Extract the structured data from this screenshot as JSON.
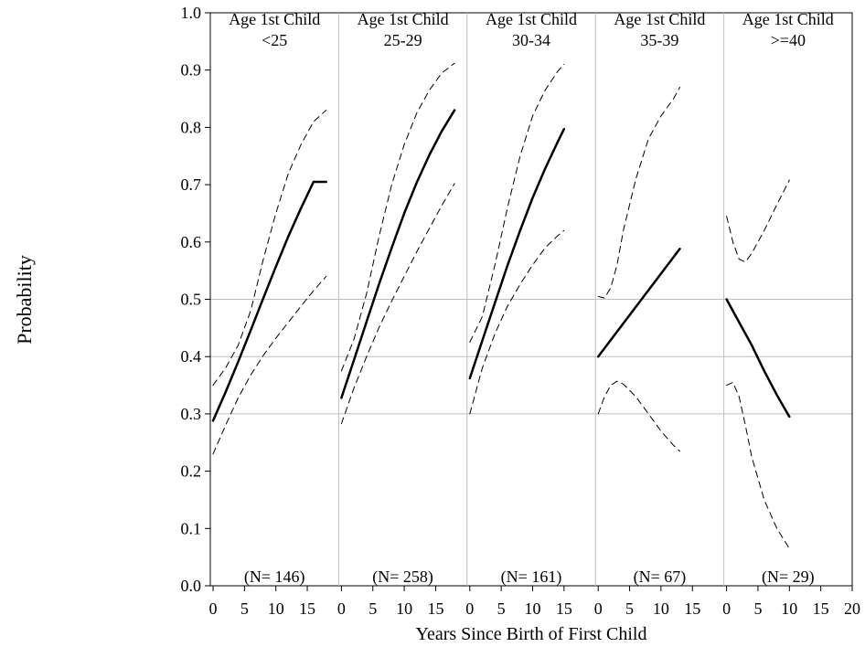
{
  "chart_data": {
    "type": "line",
    "ylabel": "Probability",
    "xlabel": "Years Since Birth of First Child",
    "ylim": [
      0.0,
      1.0
    ],
    "yticks": [
      "0.0",
      "0.1",
      "0.2",
      "0.3",
      "0.4",
      "0.5",
      "0.6",
      "0.7",
      "0.8",
      "0.9",
      "1.0"
    ],
    "xlim": [
      0,
      20
    ],
    "xticks": [
      "0",
      "5",
      "10",
      "15"
    ],
    "last_xticks": [
      "0",
      "5",
      "10",
      "15",
      "20"
    ],
    "reference_lines": [
      0.3,
      0.4,
      0.5
    ],
    "line_styles": {
      "estimate": "solid",
      "ci_lower": "dashed",
      "ci_upper": "dashed"
    },
    "line_color": "#000000",
    "panels": [
      {
        "title_line1": "Age 1st Child",
        "title_line2": "<25",
        "n_label": "(N= 146)",
        "series": [
          {
            "x": [
              0,
              2,
              4,
              6,
              8,
              10,
              12,
              14,
              16,
              18
            ],
            "values": [
              0.288,
              0.338,
              0.391,
              0.446,
              0.502,
              0.557,
              0.61,
              0.659,
              0.705,
              0.705
            ]
          },
          {
            "x": [
              0,
              2,
              4,
              6,
              8,
              10,
              12,
              14,
              16,
              18
            ],
            "values": [
              0.23,
              0.28,
              0.328,
              0.368,
              0.402,
              0.432,
              0.46,
              0.488,
              0.515,
              0.54
            ]
          },
          {
            "x": [
              0,
              2,
              4,
              6,
              8,
              10,
              12,
              14,
              16,
              18
            ],
            "values": [
              0.35,
              0.38,
              0.42,
              0.48,
              0.57,
              0.65,
              0.72,
              0.77,
              0.81,
              0.83
            ]
          }
        ]
      },
      {
        "title_line1": "Age 1st Child",
        "title_line2": "25-29",
        "n_label": "(N= 258)",
        "series": [
          {
            "x": [
              0,
              2,
              4,
              6,
              8,
              10,
              12,
              14,
              16,
              18
            ],
            "values": [
              0.328,
              0.394,
              0.461,
              0.527,
              0.59,
              0.65,
              0.704,
              0.752,
              0.794,
              0.83
            ]
          },
          {
            "x": [
              0,
              2,
              4,
              6,
              8,
              10,
              12,
              14,
              16,
              18
            ],
            "values": [
              0.283,
              0.345,
              0.4,
              0.451,
              0.497,
              0.54,
              0.583,
              0.624,
              0.664,
              0.702
            ]
          },
          {
            "x": [
              0,
              2,
              4,
              6,
              8,
              10,
              12,
              14,
              16,
              18
            ],
            "values": [
              0.375,
              0.43,
              0.51,
              0.61,
              0.7,
              0.77,
              0.825,
              0.865,
              0.895,
              0.912
            ]
          }
        ]
      },
      {
        "title_line1": "Age 1st Child",
        "title_line2": "30-34",
        "n_label": "(N= 161)",
        "series": [
          {
            "x": [
              0,
              2,
              4,
              6,
              8,
              10,
              12,
              14,
              15
            ],
            "values": [
              0.362,
              0.428,
              0.494,
              0.559,
              0.62,
              0.677,
              0.728,
              0.775,
              0.797
            ]
          },
          {
            "x": [
              0,
              2,
              4,
              6,
              8,
              10,
              12,
              14,
              15
            ],
            "values": [
              0.3,
              0.38,
              0.44,
              0.488,
              0.526,
              0.56,
              0.59,
              0.611,
              0.62
            ]
          },
          {
            "x": [
              0,
              2,
              4,
              6,
              8,
              10,
              12,
              14,
              15
            ],
            "values": [
              0.425,
              0.47,
              0.56,
              0.66,
              0.75,
              0.82,
              0.865,
              0.898,
              0.91
            ]
          }
        ]
      },
      {
        "title_line1": "Age 1st Child",
        "title_line2": "35-39",
        "n_label": "(N=  67)",
        "series": [
          {
            "x": [
              0,
              13
            ],
            "values": [
              0.4,
              0.588
            ]
          },
          {
            "x": [
              0,
              1,
              2,
              3,
              4,
              6,
              8,
              10,
              12,
              13
            ],
            "values": [
              0.3,
              0.33,
              0.35,
              0.357,
              0.352,
              0.33,
              0.3,
              0.27,
              0.245,
              0.235
            ]
          },
          {
            "x": [
              0,
              1,
              2,
              3,
              4,
              6,
              8,
              10,
              12,
              13
            ],
            "values": [
              0.505,
              0.502,
              0.52,
              0.56,
              0.62,
              0.71,
              0.78,
              0.82,
              0.85,
              0.87
            ]
          }
        ]
      },
      {
        "title_line1": "Age 1st Child",
        "title_line2": ">=40",
        "n_label": "(N=  29)",
        "series": [
          {
            "x": [
              0,
              2,
              4,
              6,
              8,
              10
            ],
            "values": [
              0.5,
              0.46,
              0.42,
              0.375,
              0.333,
              0.295
            ]
          },
          {
            "x": [
              0,
              1,
              2,
              3,
              4,
              6,
              8,
              10
            ],
            "values": [
              0.35,
              0.355,
              0.33,
              0.28,
              0.225,
              0.15,
              0.1,
              0.065
            ]
          },
          {
            "x": [
              0,
              1,
              2,
              3,
              4,
              6,
              8,
              10
            ],
            "values": [
              0.645,
              0.6,
              0.57,
              0.565,
              0.58,
              0.62,
              0.665,
              0.708
            ]
          }
        ]
      }
    ]
  }
}
